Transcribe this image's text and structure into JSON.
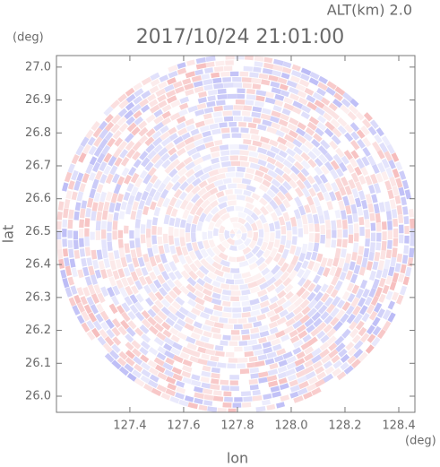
{
  "chart_data": {
    "type": "radar-ppi",
    "title": "2017/10/24 21:01:00",
    "subtitle": "ALT(km) 2.0",
    "x_label": "lon",
    "y_label": "lat",
    "x_unit": "(deg)",
    "y_unit": "(deg)",
    "xlim": [
      127.127,
      128.46
    ],
    "ylim": [
      25.951,
      27.035
    ],
    "xticks": [
      127.4,
      127.6,
      127.8,
      {
        "value": 128,
        "label": "128.0"
      },
      128.2,
      128.4
    ],
    "yticks": [
      {
        "value": 26,
        "label": "26.0"
      },
      26.1,
      26.2,
      26.3,
      26.4,
      26.5,
      26.6,
      26.7,
      26.8,
      26.9,
      {
        "value": 27,
        "label": "27.0"
      }
    ]
  }
}
